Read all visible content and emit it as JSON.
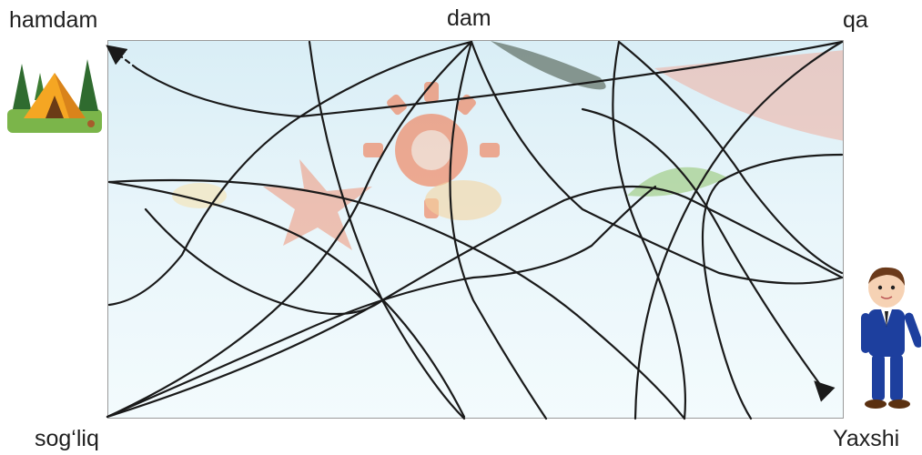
{
  "labels": {
    "top_left": "hamdam",
    "top_middle": "dam",
    "top_right": "qa",
    "bottom_left": "sog‘liq",
    "bottom_right": "Yaxshi"
  },
  "pictures": {
    "start_character": "boy-in-blue-suit",
    "goal_scene": "camping-tent-in-forest",
    "background_motif": "sun-starfish-seashells"
  },
  "colors": {
    "line": "#1a1a1a",
    "sky_top": "#d9eef6",
    "sun": "#f26c3d",
    "suit": "#1d3f9e"
  }
}
